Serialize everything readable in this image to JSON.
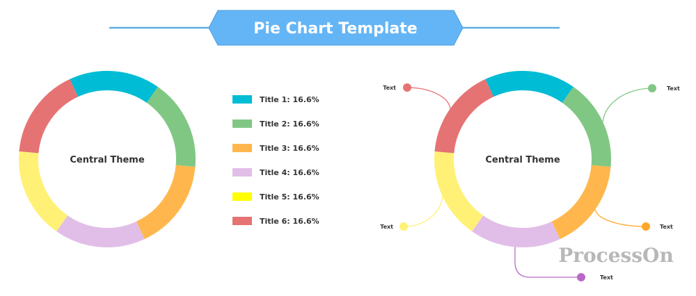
{
  "header": {
    "title": "Pie Chart Template",
    "banner_color": "#64B5F6",
    "line_color": "#5DADE2"
  },
  "chart_data": [
    {
      "type": "pie",
      "variant": "donut",
      "center_label": "Central Theme",
      "slices": [
        {
          "label": "Title 1: 16.6%",
          "value": 16.6,
          "color": "#00BCD4"
        },
        {
          "label": "Title 2: 16.6%",
          "value": 16.6,
          "color": "#81C784"
        },
        {
          "label": "Title 3: 16.6%",
          "value": 16.6,
          "color": "#FFB74D"
        },
        {
          "label": "Title 4: 16.6%",
          "value": 16.6,
          "color": "#E1BEE7"
        },
        {
          "label": "Title 5: 16.6%",
          "value": 16.6,
          "color": "#FFF176"
        },
        {
          "label": "Title 6: 16.6%",
          "value": 16.6,
          "color": "#E57373"
        }
      ],
      "legend": {
        "position": "right",
        "swatch_colors": [
          "#00BCD4",
          "#81C784",
          "#FFB74D",
          "#E1BEE7",
          "#FFFF00",
          "#E57373"
        ]
      }
    },
    {
      "type": "pie",
      "variant": "donut",
      "center_label": "Central Theme",
      "slices": [
        {
          "value": 16.6,
          "color": "#00BCD4"
        },
        {
          "value": 16.6,
          "color": "#81C784"
        },
        {
          "value": 16.6,
          "color": "#FFB74D"
        },
        {
          "value": 16.6,
          "color": "#E1BEE7"
        },
        {
          "value": 16.6,
          "color": "#FFF176"
        },
        {
          "value": 16.6,
          "color": "#E57373"
        }
      ],
      "callouts": [
        {
          "slice": 1,
          "text": "Text",
          "color": "#81C784"
        },
        {
          "slice": 2,
          "text": "Text",
          "color": "#FFA726"
        },
        {
          "slice": 3,
          "text": "Text",
          "color": "#BA68C8"
        },
        {
          "slice": 4,
          "text": "Text",
          "color": "#FFF176"
        },
        {
          "slice": 5,
          "text": "Text",
          "color": "#E57373"
        }
      ]
    }
  ],
  "watermark": {
    "text": "ProcessOn"
  }
}
